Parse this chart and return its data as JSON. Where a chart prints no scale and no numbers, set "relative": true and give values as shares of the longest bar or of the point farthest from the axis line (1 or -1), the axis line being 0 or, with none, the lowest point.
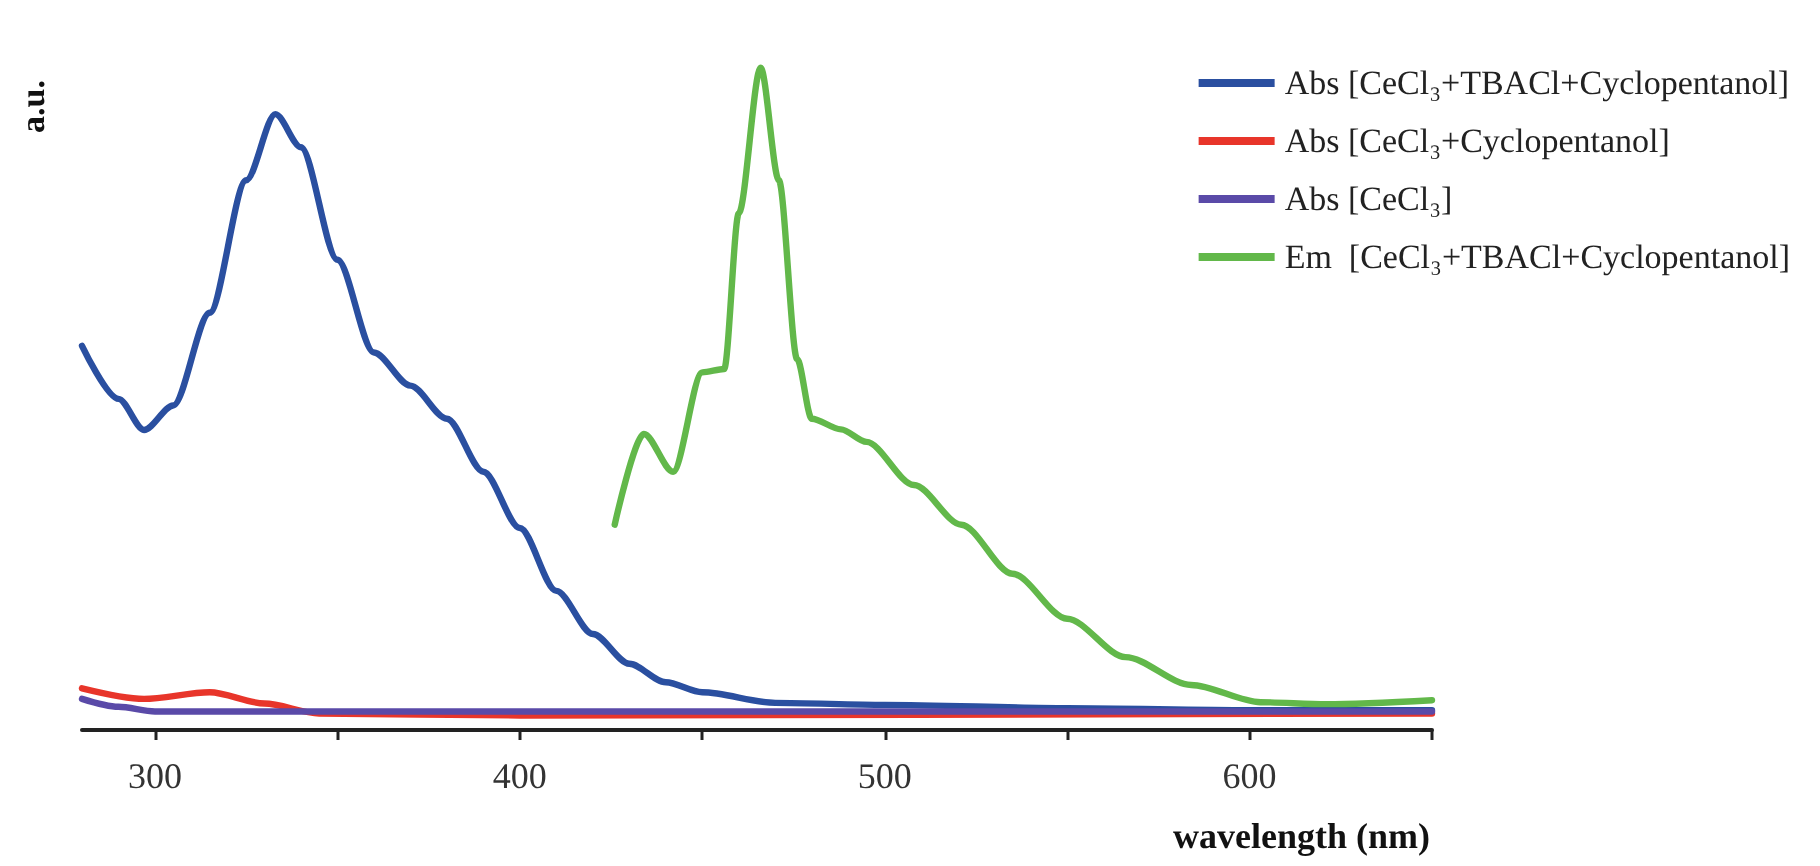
{
  "chart_data": {
    "type": "line",
    "relative": true,
    "xlabel": "wavelength (nm)",
    "ylabel": "a.u.",
    "xlim": [
      280,
      650
    ],
    "xticks": [
      300,
      {
        "value": 350,
        "label": null
      },
      400,
      {
        "value": 450,
        "label": null
      },
      500,
      {
        "value": 550,
        "label": null
      },
      600,
      {
        "value": 650,
        "label": null
      }
    ],
    "tick_labels": "x",
    "grid": false,
    "legend": "top right",
    "marker": "none",
    "line_style": "solid",
    "series": [
      {
        "name": "Abs [CeCl₃+TBACl+Cyclopentanol]",
        "color": "#2a4fa0",
        "x": [
          280,
          290,
          297,
          305,
          315,
          325,
          333,
          340,
          350,
          360,
          370,
          380,
          390,
          400,
          410,
          420,
          430,
          440,
          450,
          470,
          500,
          550,
          600,
          650
        ],
        "values": [
          0.58,
          0.5,
          0.453,
          0.49,
          0.63,
          0.83,
          0.93,
          0.88,
          0.71,
          0.57,
          0.52,
          0.47,
          0.39,
          0.305,
          0.21,
          0.145,
          0.1,
          0.072,
          0.057,
          0.041,
          0.038,
          0.033,
          0.03,
          0.03
        ]
      },
      {
        "name": "Abs [CeCl₃+Cyclopentanol]",
        "color": "#e8352a",
        "x": [
          280,
          297,
          315,
          330,
          345,
          400,
          650
        ],
        "values": [
          0.063,
          0.047,
          0.057,
          0.04,
          0.025,
          0.022,
          0.025
        ]
      },
      {
        "name": "Abs [CeCl₃]",
        "color": "#5a4aa8",
        "x": [
          280,
          290,
          300,
          350,
          650
        ],
        "values": [
          0.047,
          0.035,
          0.028,
          0.028,
          0.028
        ]
      },
      {
        "name": "Em  [CeCl₃+TBACl+Cyclopentanol]",
        "color": "#62b84a",
        "x": [
          426,
          434,
          442,
          450,
          456,
          460,
          466,
          471,
          476,
          480,
          488,
          495,
          508,
          521,
          535,
          550,
          566,
          584,
          603,
          621,
          650
        ],
        "values": [
          0.31,
          0.447,
          0.39,
          0.54,
          0.545,
          0.78,
          1.0,
          0.83,
          0.56,
          0.47,
          0.454,
          0.435,
          0.37,
          0.31,
          0.236,
          0.168,
          0.11,
          0.068,
          0.042,
          0.039,
          0.045
        ]
      }
    ]
  }
}
